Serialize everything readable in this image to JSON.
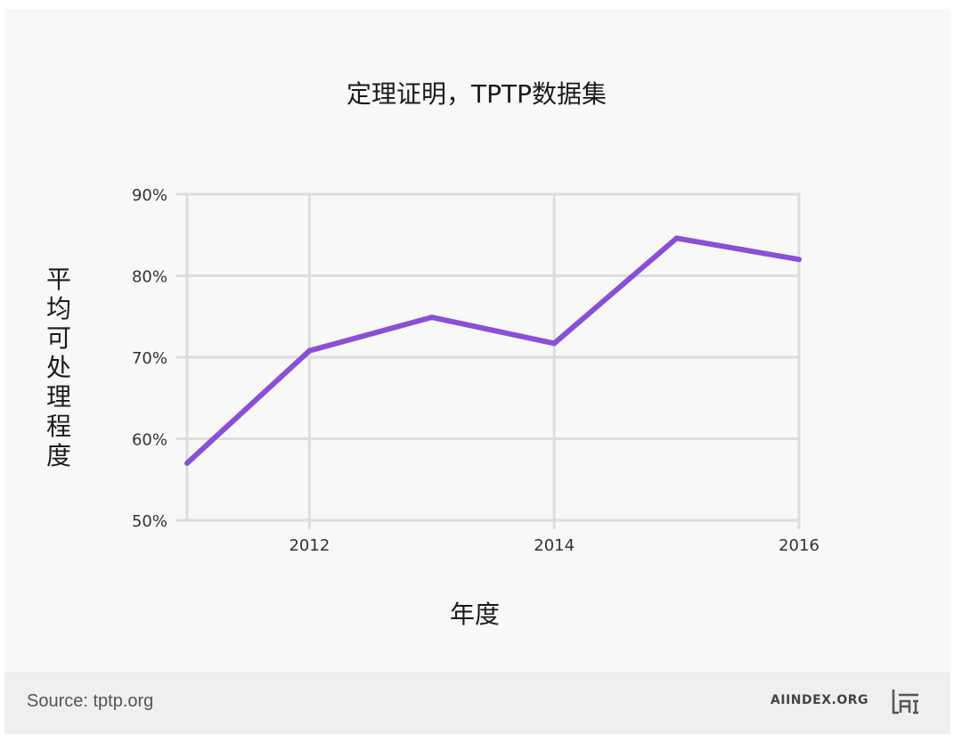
{
  "colors": {
    "line": "#8a4fd6",
    "grid": "#dddddd",
    "background": "#f8f8f8",
    "footer_background": "#efefef"
  },
  "footer": {
    "source": "Source: tptp.org",
    "brand": "AIINDEX.ORG",
    "logo_icon": "ai-logo-icon"
  },
  "chart_data": {
    "type": "line",
    "title": "定理证明，TPTP数据集",
    "xlabel": "年度",
    "ylabel": "平均可处理程度",
    "x": [
      2011,
      2012,
      2013,
      2014,
      2015,
      2016
    ],
    "series": [
      {
        "values": [
          57,
          70.8,
          74.9,
          71.7,
          84.6,
          82
        ]
      }
    ],
    "xlim": [
      2011,
      2016
    ],
    "ylim": [
      50,
      90
    ],
    "xticks": [
      2012,
      2014,
      2016
    ],
    "xtick_labels": [
      "2012",
      "2014",
      "2016"
    ],
    "yticks": [
      50,
      60,
      70,
      80,
      90
    ],
    "ytick_labels": [
      "50%",
      "60%",
      "70%",
      "80%",
      "90%"
    ],
    "grid": true,
    "legend": "none"
  }
}
